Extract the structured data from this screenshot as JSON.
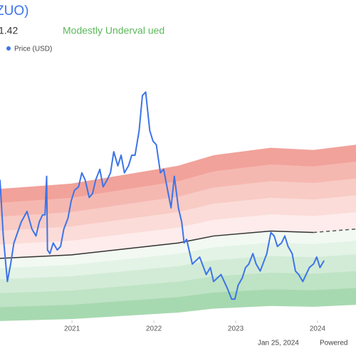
{
  "chart_data": {
    "type": "line",
    "title": "ZUO)",
    "price_label": "1.42",
    "status": "Modestly Underval ued",
    "status_color": "#5cb85c",
    "date_note": "Jan 25, 2024",
    "credit": "Powered",
    "xlim": [
      2020.12,
      2024.47
    ],
    "ylim": [
      5.3,
      23.4
    ],
    "xticks": [
      2021,
      2022,
      2023,
      2024
    ],
    "series": [
      {
        "name": "Price (USD)",
        "color": "#3d74e8",
        "x": [
          2020.12,
          2020.16,
          2020.21,
          2020.25,
          2020.29,
          2020.38,
          2020.45,
          2020.51,
          2020.56,
          2020.6,
          2020.64,
          2020.67,
          2020.69,
          2020.7,
          2020.73,
          2020.77,
          2020.82,
          2020.86,
          2020.9,
          2020.95,
          2020.99,
          2021.03,
          2021.08,
          2021.12,
          2021.16,
          2021.21,
          2021.25,
          2021.29,
          2021.34,
          2021.38,
          2021.43,
          2021.47,
          2021.51,
          2021.56,
          2021.6,
          2021.64,
          2021.69,
          2021.73,
          2021.77,
          2021.82,
          2021.86,
          2021.9,
          2021.95,
          2021.99,
          2022.03,
          2022.08,
          2022.12,
          2022.16,
          2022.21,
          2022.25,
          2022.3,
          2022.34,
          2022.37,
          2022.4,
          2022.47,
          2022.56,
          2022.64,
          2022.69,
          2022.73,
          2022.82,
          2022.86,
          2022.9,
          2022.95,
          2022.99,
          2023.03,
          2023.08,
          2023.12,
          2023.16,
          2023.21,
          2023.25,
          2023.3,
          2023.38,
          2023.43,
          2023.47,
          2023.51,
          2023.56,
          2023.6,
          2023.64,
          2023.69,
          2023.73,
          2023.77,
          2023.82,
          2023.86,
          2023.9,
          2023.95,
          2023.99,
          2024.03,
          2024.08
        ],
        "values": [
          14.96,
          11.1,
          7.97,
          9.17,
          10.62,
          12.07,
          12.79,
          11.58,
          11.1,
          12.07,
          12.55,
          12.55,
          15.2,
          10.14,
          9.89,
          10.62,
          10.14,
          10.38,
          11.58,
          12.31,
          13.51,
          14.24,
          14.48,
          15.44,
          14.96,
          13.75,
          14.0,
          14.96,
          15.68,
          14.48,
          14.96,
          15.44,
          16.89,
          15.92,
          16.65,
          15.44,
          15.92,
          16.65,
          16.65,
          18.34,
          20.75,
          20.99,
          18.34,
          17.61,
          17.37,
          15.44,
          15.68,
          14.48,
          13.03,
          15.2,
          13.03,
          12.07,
          10.62,
          10.87,
          9.17,
          9.65,
          8.45,
          8.93,
          7.97,
          8.45,
          7.97,
          7.48,
          6.76,
          6.76,
          7.72,
          8.21,
          8.93,
          9.17,
          9.89,
          9.17,
          8.69,
          9.89,
          11.34,
          11.1,
          10.38,
          10.62,
          11.1,
          10.38,
          9.89,
          8.69,
          8.45,
          7.97,
          8.45,
          8.93,
          9.17,
          9.65,
          8.93,
          9.41
        ]
      }
    ],
    "gf_value": {
      "color": "#333333",
      "x": [
        2020.12,
        2020.99,
        2022.3,
        2022.73,
        2023.43,
        2023.95
      ],
      "values": [
        9.56,
        9.8,
        10.62,
        11.1,
        11.44,
        11.34
      ]
    },
    "gf_value_estimate": {
      "color": "#555555",
      "x": [
        2023.95,
        2024.47
      ],
      "values": [
        11.34,
        11.58
      ]
    },
    "bands": [
      {
        "factor": 1.5,
        "color": "#f1a29a"
      },
      {
        "factor": 1.4,
        "color": "#f5b8b1"
      },
      {
        "factor": 1.3,
        "color": "#f8cbc5"
      },
      {
        "factor": 1.2,
        "color": "#fbdcd8"
      },
      {
        "factor": 1.1,
        "color": "#fdeceb"
      },
      {
        "factor": 0.55,
        "color": "#a7d9b0"
      },
      {
        "factor": 0.65,
        "color": "#bfe3c5"
      },
      {
        "factor": 0.75,
        "color": "#d2ebd6"
      },
      {
        "factor": 0.85,
        "color": "#e3f3e6"
      },
      {
        "factor": 0.93,
        "color": "#f1f9f2"
      }
    ]
  }
}
